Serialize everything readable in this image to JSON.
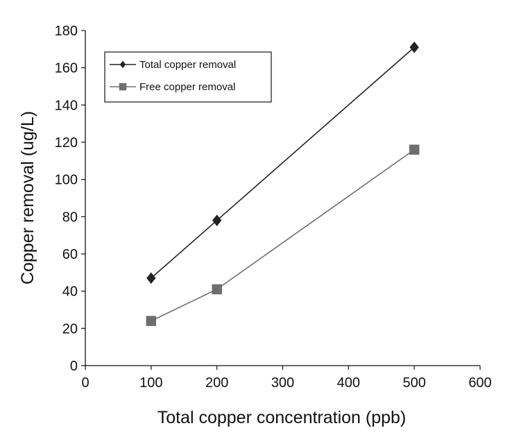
{
  "chart_data": {
    "type": "line",
    "title": "",
    "xlabel": "Total copper concentration (ppb)",
    "ylabel": "Copper removal (ug/L)",
    "xlim": [
      0,
      600
    ],
    "ylim": [
      0,
      180
    ],
    "xticks": [
      0,
      100,
      200,
      300,
      400,
      500,
      600
    ],
    "yticks": [
      0,
      20,
      40,
      60,
      80,
      100,
      120,
      140,
      160,
      180
    ],
    "grid": false,
    "legend_position": "top-left",
    "series": [
      {
        "name": "Total copper removal",
        "marker": "diamond",
        "color": "#222222",
        "x": [
          100,
          200,
          500
        ],
        "y": [
          47,
          78,
          171
        ]
      },
      {
        "name": "Free copper removal",
        "marker": "square",
        "color": "#6e6e6e",
        "x": [
          100,
          200,
          500
        ],
        "y": [
          24,
          41,
          116
        ]
      }
    ]
  }
}
